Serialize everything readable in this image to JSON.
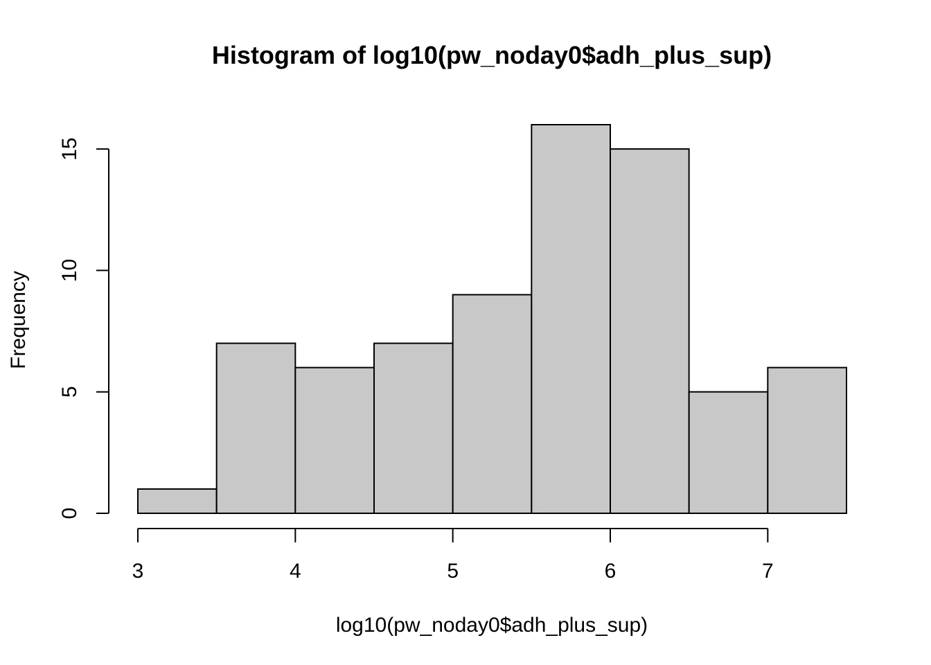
{
  "chart_data": {
    "type": "bar",
    "title": "Histogram of log10(pw_noday0$adh_plus_sup)",
    "xlabel": "log10(pw_noday0$adh_plus_sup)",
    "ylabel": "Frequency",
    "bins": [
      {
        "from": 3.0,
        "to": 3.5,
        "count": 1
      },
      {
        "from": 3.5,
        "to": 4.0,
        "count": 7
      },
      {
        "from": 4.0,
        "to": 4.5,
        "count": 6
      },
      {
        "from": 4.5,
        "to": 5.0,
        "count": 7
      },
      {
        "from": 5.0,
        "to": 5.5,
        "count": 9
      },
      {
        "from": 5.5,
        "to": 6.0,
        "count": 16
      },
      {
        "from": 6.0,
        "to": 6.5,
        "count": 15
      },
      {
        "from": 6.5,
        "to": 7.0,
        "count": 5
      },
      {
        "from": 7.0,
        "to": 7.5,
        "count": 6
      }
    ],
    "x_ticks": [
      "3",
      "4",
      "5",
      "6",
      "7"
    ],
    "y_ticks": [
      "0",
      "5",
      "10",
      "15"
    ],
    "xlim": [
      3,
      7.5
    ],
    "ylim": [
      0,
      16
    ],
    "bar_color": "#C8C8C8",
    "grid": false,
    "legend": "none"
  }
}
